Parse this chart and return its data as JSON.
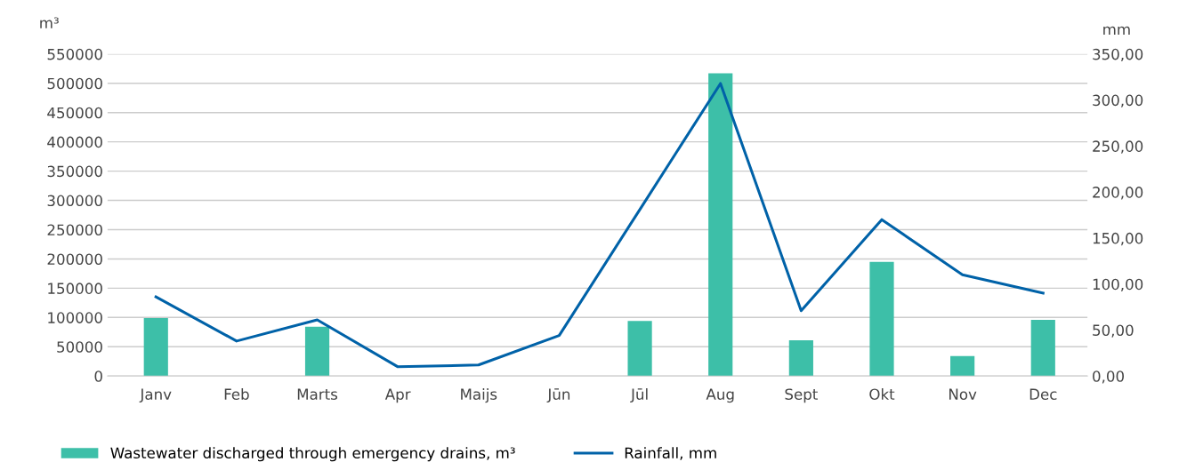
{
  "chart_data": {
    "type": "bar",
    "categories": [
      "Janv",
      "Feb",
      "Marts",
      "Apr",
      "Maijs",
      "Jūn",
      "Jūl",
      "Aug",
      "Sept",
      "Okt",
      "Nov",
      "Dec"
    ],
    "ylabel": "m³",
    "y2label": "mm",
    "series": [
      {
        "name": "Wastewater discharged through emergency drains, m³",
        "color": "#3dbfa8",
        "values": [
          99000,
          null,
          84000,
          null,
          null,
          null,
          94000,
          517000,
          61000,
          195000,
          34000,
          96000
        ]
      },
      {
        "name": "Rainfall, mm",
        "type": "line",
        "axis": "y2",
        "color": "#0062a8",
        "values": [
          86,
          38,
          61,
          10,
          12,
          44,
          181,
          318,
          71,
          170,
          110,
          90
        ]
      }
    ],
    "ylim": [
      0,
      550000
    ],
    "yticks": [
      0,
      50000,
      100000,
      150000,
      200000,
      250000,
      300000,
      350000,
      400000,
      450000,
      500000,
      550000
    ],
    "y2lim": [
      0,
      350
    ],
    "y2ticks": [
      {
        "value": 0,
        "label": "0,00"
      },
      {
        "value": 50,
        "label": "50,00"
      },
      {
        "value": 100,
        "label": "100,00"
      },
      {
        "value": 150,
        "label": "150,00"
      },
      {
        "value": 200,
        "label": "200,00"
      },
      {
        "value": 250,
        "label": "250,00"
      },
      {
        "value": 300,
        "label": "300,00"
      },
      {
        "value": 350,
        "label": "350,00"
      }
    ],
    "grid": "y",
    "legend": "bottom left",
    "marker": "none",
    "line_style": "solid"
  }
}
